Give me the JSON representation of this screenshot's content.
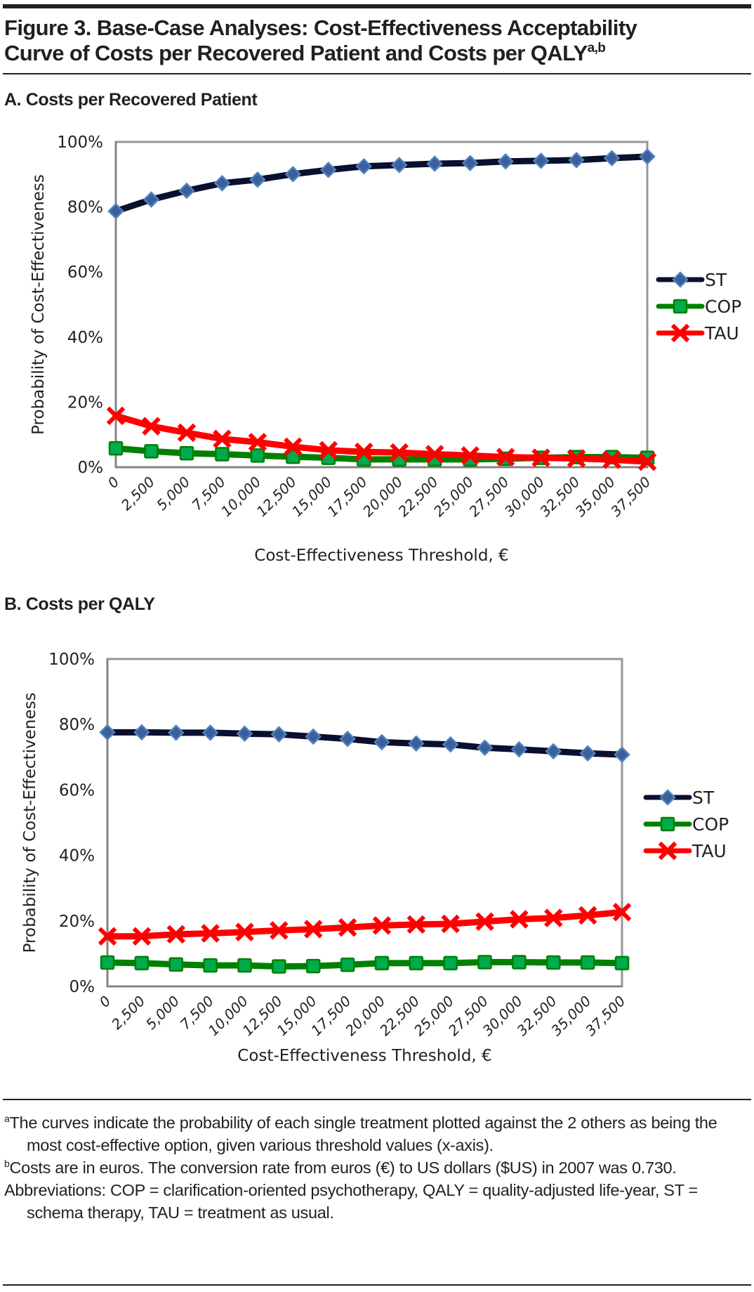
{
  "figure": {
    "title_line1": "Figure 3. Base-Case Analyses: Cost-Effectiveness Acceptability",
    "title_line2": "Curve of Costs per Recovered Patient and Costs per QALY",
    "title_superscript": "a,b"
  },
  "footnotes": {
    "a_marker": "a",
    "a_text": "The curves indicate the probability of each single treatment plotted against the 2 others as being the most cost-effective option, given various threshold values (x-axis).",
    "b_marker": "b",
    "b_text": "Costs are in euros. The conversion rate from euros (€) to US dollars ($US) in 2007 was 0.730.",
    "abbreviations": "Abbreviations: COP = clarification-oriented psychotherapy, QALY = quality-adjusted life-year, ST = schema therapy, TAU = treatment as usual."
  },
  "series_style": {
    "ST": {
      "line": "#0a0f2e",
      "marker": "diamond",
      "marker_fill": "#3a5f9c",
      "marker_edge": "#4f81bd"
    },
    "COP": {
      "line": "#008000",
      "marker": "square",
      "marker_fill": "#00aa4f",
      "marker_edge": "#008000"
    },
    "TAU": {
      "line": "#ff0000",
      "marker": "x",
      "marker_fill": "#ff0000",
      "marker_edge": "#ff0000"
    }
  },
  "chart_data": [
    {
      "type": "line",
      "panel_title": "A. Costs per Recovered Patient",
      "title": "A. Costs per Recovered Patient",
      "xlabel": "Cost-Effectiveness Threshold, €",
      "ylabel": "Probability of Cost-Effectiveness",
      "ylim": [
        0,
        100
      ],
      "yticks": [
        "0%",
        "20%",
        "40%",
        "60%",
        "80%",
        "100%"
      ],
      "ytick_values": [
        0,
        20,
        40,
        60,
        80,
        100
      ],
      "categories": [
        "0",
        "2,500",
        "5,000",
        "7,500",
        "10,000",
        "12,500",
        "15,000",
        "17,500",
        "20,000",
        "22,500",
        "25,000",
        "27,500",
        "30,000",
        "32,500",
        "35,000",
        "37,500"
      ],
      "grid": false,
      "legend_position": "right",
      "series": [
        {
          "name": "ST",
          "values": [
            78.7,
            82.3,
            85.0,
            87.3,
            88.4,
            90.1,
            91.4,
            92.5,
            92.9,
            93.3,
            93.5,
            94.0,
            94.2,
            94.4,
            95.0,
            95.5
          ]
        },
        {
          "name": "COP",
          "values": [
            5.8,
            4.9,
            4.3,
            4.0,
            3.6,
            3.2,
            2.9,
            2.4,
            2.4,
            2.4,
            2.4,
            2.6,
            2.9,
            3.1,
            3.1,
            2.9
          ]
        },
        {
          "name": "TAU",
          "values": [
            15.8,
            12.6,
            10.6,
            8.7,
            7.7,
            6.3,
            5.2,
            4.7,
            4.5,
            4.0,
            3.6,
            3.1,
            2.9,
            2.7,
            2.3,
            1.7
          ]
        }
      ]
    },
    {
      "type": "line",
      "panel_title": "B. Costs per QALY",
      "title": "B. Costs per QALY",
      "xlabel": "Cost-Effectiveness Threshold, €",
      "ylabel": "Probability of Cost-Effectiveness",
      "ylim": [
        0,
        100
      ],
      "yticks": [
        "0%",
        "20%",
        "40%",
        "60%",
        "80%",
        "100%"
      ],
      "ytick_values": [
        0,
        20,
        40,
        60,
        80,
        100
      ],
      "categories": [
        "0",
        "2,500",
        "5,000",
        "7,500",
        "10,000",
        "12,500",
        "15,000",
        "17,500",
        "20,000",
        "22,500",
        "25,000",
        "27,500",
        "30,000",
        "32,500",
        "35,000",
        "37,500"
      ],
      "grid": false,
      "legend_position": "right",
      "series": [
        {
          "name": "ST",
          "values": [
            77.6,
            77.6,
            77.5,
            77.5,
            77.2,
            77.0,
            76.3,
            75.6,
            74.6,
            74.2,
            73.9,
            72.9,
            72.4,
            71.8,
            71.2,
            70.8
          ]
        },
        {
          "name": "COP",
          "values": [
            7.3,
            7.1,
            6.7,
            6.4,
            6.4,
            6.1,
            6.2,
            6.6,
            7.1,
            7.1,
            7.1,
            7.4,
            7.4,
            7.3,
            7.3,
            7.1
          ]
        },
        {
          "name": "TAU",
          "values": [
            15.3,
            15.3,
            15.9,
            16.2,
            16.6,
            17.1,
            17.5,
            18.0,
            18.6,
            18.9,
            19.1,
            19.8,
            20.5,
            20.9,
            21.7,
            22.7
          ]
        }
      ]
    }
  ]
}
